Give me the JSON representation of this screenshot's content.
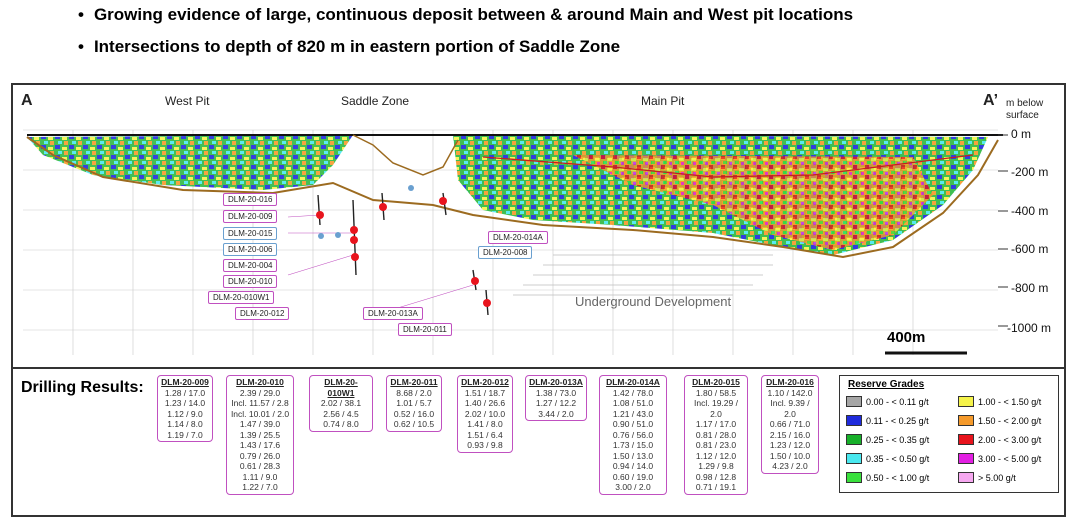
{
  "bullets": [
    "Growing evidence of large, continuous deposit between & around Main and West pit locations",
    "Intersections to depth of 820 m in eastern portion of Saddle Zone"
  ],
  "section": {
    "left_marker": "A",
    "right_marker": "A’",
    "west_pit": "West Pit",
    "saddle_zone": "Saddle Zone",
    "main_pit": "Main Pit",
    "depth_header": "m below surface",
    "depth_labels": [
      "0 m",
      "-200 m",
      "-400 m",
      "-600 m",
      "-800 m",
      "-1000 m"
    ],
    "underground": "Underground Development",
    "scale_label": "400m",
    "hole_labels": [
      "DLM-20-016",
      "DLM-20-009",
      "DLM-20-015",
      "DLM-20-006",
      "DLM-20-004",
      "DLM-20-010",
      "DLM-20-010W1",
      "DLM-20-012",
      "DLM-20-013A",
      "DLM-20-011",
      "DLM-20-014A",
      "DLM-20-008"
    ]
  },
  "results": {
    "title": "Drilling Results:",
    "cards": [
      {
        "name": "DLM-20-009",
        "lines": [
          "1.28 / 17.0",
          "1.23 / 14.0",
          "1.12 / 9.0",
          "1.14 / 8.0",
          "1.19 / 7.0"
        ]
      },
      {
        "name": "DLM-20-010",
        "lines": [
          "2.39 / 29.0",
          "Incl. 11.57 / 2.8",
          "Incl. 10.01 / 2.0",
          "1.47 / 39.0",
          "1.39 / 25.5",
          "1.43 / 17.6",
          "0.79 / 26.0",
          "0.61 / 28.3",
          "1.11 / 9.0",
          "1.22 / 7.0"
        ]
      },
      {
        "name": "DLM-20-010W1",
        "lines": [
          "2.02 / 38.1",
          "2.56 / 4.5",
          "0.74 / 8.0"
        ]
      },
      {
        "name": "DLM-20-011",
        "lines": [
          "8.68 / 2.0",
          "1.01 / 5.7",
          "0.52 / 16.0",
          "0.62 / 10.5"
        ]
      },
      {
        "name": "DLM-20-012",
        "lines": [
          "1.51 / 18.7",
          "1.40 / 26.6",
          "2.02 / 10.0",
          "1.41 / 8.0",
          "1.51 / 6.4",
          "0.93 / 9.8"
        ]
      },
      {
        "name": "DLM-20-013A",
        "lines": [
          "1.38 / 73.0",
          "1.27 / 12.2",
          "3.44 / 2.0"
        ]
      },
      {
        "name": "DLM-20-014A",
        "lines": [
          "1.42 / 78.0",
          "1.08 / 51.0",
          "1.21 / 43.0",
          "0.90 / 51.0",
          "0.76 / 56.0",
          "1.73 / 15.0",
          "1.50 / 13.0",
          "0.94 / 14.0",
          "0.60 / 19.0",
          "3.00 / 2.0"
        ]
      },
      {
        "name": "DLM-20-015",
        "lines": [
          "1.80 / 58.5",
          "Incl. 19.29 / 2.0",
          "1.17 / 17.0",
          "0.81 / 28.0",
          "0.81 / 23.0",
          "1.12 / 12.0",
          "1.29 / 9.8",
          "0.98 / 12.8",
          "0.71 / 19.1"
        ]
      },
      {
        "name": "DLM-20-016",
        "lines": [
          "1.10 / 142.0",
          "Incl. 9.39 / 2.0",
          "0.66 / 71.0",
          "2.15 / 16.0",
          "1.23 / 12.0",
          "1.50 / 10.0",
          "4.23 / 2.0"
        ]
      }
    ]
  },
  "legend": {
    "title": "Reserve Grades",
    "items": [
      {
        "label": "0.00 - < 0.11 g/t",
        "color": "#a6a6a6"
      },
      {
        "label": "0.11 - < 0.25 g/t",
        "color": "#1f2bdc"
      },
      {
        "label": "0.25 - < 0.35 g/t",
        "color": "#17b02a"
      },
      {
        "label": "0.35 - < 0.50 g/t",
        "color": "#49e8ef"
      },
      {
        "label": "0.50 - < 1.00 g/t",
        "color": "#39e03c"
      },
      {
        "label": "1.00 - < 1.50 g/t",
        "color": "#f5f34a"
      },
      {
        "label": "1.50 - < 2.00 g/t",
        "color": "#f59a2b"
      },
      {
        "label": "2.00 - < 3.00 g/t",
        "color": "#e8141d"
      },
      {
        "label": "3.00 - < 5.00 g/t",
        "color": "#e21fe2"
      },
      {
        "label": "> 5.00 g/t",
        "color": "#f6a8f0"
      }
    ]
  }
}
